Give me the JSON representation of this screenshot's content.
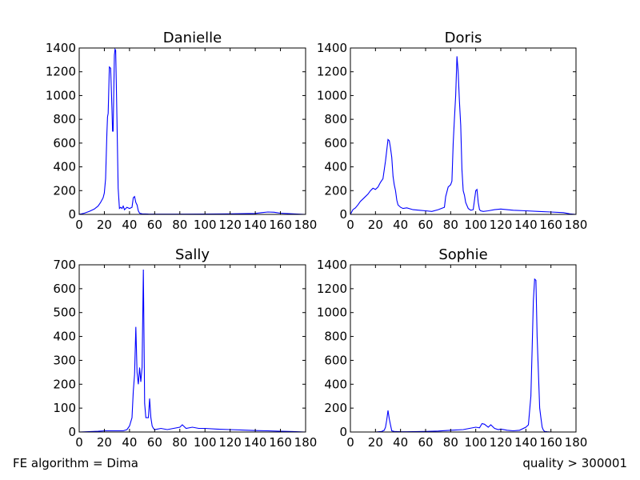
{
  "figure": {
    "footer_left": "FE algorithm = Dima",
    "footer_right": "quality > 300001",
    "line_color": "#0000ff"
  },
  "chart_data": [
    {
      "type": "line",
      "title": "Danielle",
      "xlim": [
        0,
        180
      ],
      "ylim": [
        0,
        1400
      ],
      "xticks": [
        0,
        20,
        40,
        60,
        80,
        100,
        120,
        140,
        160,
        180
      ],
      "yticks": [
        0,
        200,
        400,
        600,
        800,
        1000,
        1200,
        1400
      ],
      "series": [
        {
          "x": [
            0,
            4,
            8,
            12,
            15,
            17,
            19,
            20,
            21,
            22,
            22.5,
            23,
            24,
            25,
            26,
            26.5,
            27,
            28,
            28.5,
            29,
            30,
            31,
            32,
            33,
            34,
            35,
            36,
            38,
            40,
            42,
            43,
            44,
            45,
            46,
            47,
            48,
            50,
            55,
            60,
            80,
            100,
            120,
            140,
            145,
            150,
            155,
            160,
            170,
            180
          ],
          "y": [
            0,
            10,
            25,
            45,
            70,
            100,
            140,
            180,
            300,
            680,
            820,
            850,
            1240,
            1230,
            900,
            700,
            700,
            1340,
            1390,
            1380,
            800,
            220,
            50,
            60,
            50,
            70,
            40,
            60,
            50,
            60,
            140,
            150,
            100,
            80,
            30,
            10,
            5,
            3,
            2,
            2,
            3,
            5,
            8,
            15,
            20,
            18,
            10,
            5,
            0
          ]
        }
      ]
    },
    {
      "type": "line",
      "title": "Doris",
      "xlim": [
        0,
        180
      ],
      "ylim": [
        0,
        1400
      ],
      "xticks": [
        0,
        20,
        40,
        60,
        80,
        100,
        120,
        140,
        160,
        180
      ],
      "yticks": [
        0,
        200,
        400,
        600,
        800,
        1000,
        1200,
        1400
      ],
      "series": [
        {
          "x": [
            0,
            2,
            4,
            6,
            8,
            10,
            12,
            14,
            16,
            18,
            20,
            22,
            24,
            26,
            28,
            30,
            31,
            32,
            33,
            34,
            35,
            36,
            37,
            38,
            40,
            42,
            45,
            50,
            55,
            60,
            65,
            70,
            75,
            76,
            78,
            80,
            81,
            82,
            83,
            84,
            85,
            86,
            87,
            88,
            89,
            90,
            91,
            92,
            94,
            96,
            98,
            100,
            101,
            102,
            103,
            104,
            106,
            110,
            115,
            120,
            125,
            130,
            140,
            150,
            160,
            170,
            175,
            180
          ],
          "y": [
            0,
            40,
            55,
            80,
            110,
            130,
            150,
            170,
            200,
            220,
            210,
            230,
            270,
            300,
            450,
            630,
            620,
            560,
            480,
            320,
            250,
            200,
            120,
            80,
            60,
            50,
            55,
            40,
            35,
            30,
            25,
            40,
            60,
            150,
            230,
            250,
            280,
            600,
            800,
            1000,
            1330,
            1200,
            950,
            750,
            380,
            200,
            160,
            100,
            50,
            35,
            40,
            200,
            210,
            100,
            40,
            30,
            25,
            30,
            40,
            45,
            40,
            35,
            30,
            25,
            20,
            15,
            5,
            0
          ]
        }
      ]
    },
    {
      "type": "line",
      "title": "Sally",
      "xlim": [
        0,
        180
      ],
      "ylim": [
        0,
        700
      ],
      "xticks": [
        0,
        20,
        40,
        60,
        80,
        100,
        120,
        140,
        160,
        180
      ],
      "yticks": [
        0,
        100,
        200,
        300,
        400,
        500,
        600,
        700
      ],
      "series": [
        {
          "x": [
            0,
            15,
            20,
            30,
            35,
            38,
            40,
            42,
            43,
            44,
            45,
            46,
            47,
            48,
            49,
            50,
            51,
            52,
            53,
            54,
            55,
            56,
            57,
            58,
            59,
            60,
            62,
            65,
            70,
            75,
            80,
            82,
            85,
            90,
            95,
            100,
            110,
            120,
            130,
            140,
            150,
            160,
            170,
            180
          ],
          "y": [
            0,
            3,
            5,
            5,
            5,
            10,
            25,
            60,
            170,
            240,
            440,
            250,
            200,
            270,
            210,
            270,
            680,
            120,
            60,
            60,
            60,
            140,
            60,
            25,
            15,
            10,
            12,
            15,
            10,
            15,
            20,
            30,
            15,
            20,
            15,
            15,
            12,
            10,
            8,
            6,
            5,
            3,
            2,
            0
          ]
        }
      ]
    },
    {
      "type": "line",
      "title": "Sophie",
      "xlim": [
        0,
        180
      ],
      "ylim": [
        0,
        1400
      ],
      "xticks": [
        0,
        20,
        40,
        60,
        80,
        100,
        120,
        140,
        160,
        180
      ],
      "yticks": [
        0,
        200,
        400,
        600,
        800,
        1000,
        1200,
        1400
      ],
      "series": [
        {
          "x": [
            0,
            20,
            25,
            27,
            28,
            29,
            30,
            31,
            32,
            33,
            35,
            40,
            50,
            60,
            70,
            80,
            90,
            95,
            100,
            103,
            105,
            107,
            110,
            112,
            115,
            118,
            120,
            125,
            130,
            135,
            140,
            142,
            144,
            145,
            146,
            147,
            148,
            149,
            150,
            151,
            152,
            153,
            154,
            155,
            157,
            160,
            170,
            180
          ],
          "y": [
            0,
            0,
            5,
            15,
            40,
            100,
            180,
            110,
            60,
            10,
            5,
            2,
            3,
            5,
            8,
            15,
            20,
            30,
            40,
            35,
            70,
            65,
            40,
            60,
            30,
            20,
            25,
            15,
            10,
            15,
            40,
            60,
            300,
            700,
            1100,
            1280,
            1270,
            800,
            500,
            200,
            120,
            40,
            15,
            5,
            2,
            0,
            0,
            0
          ]
        }
      ]
    }
  ]
}
